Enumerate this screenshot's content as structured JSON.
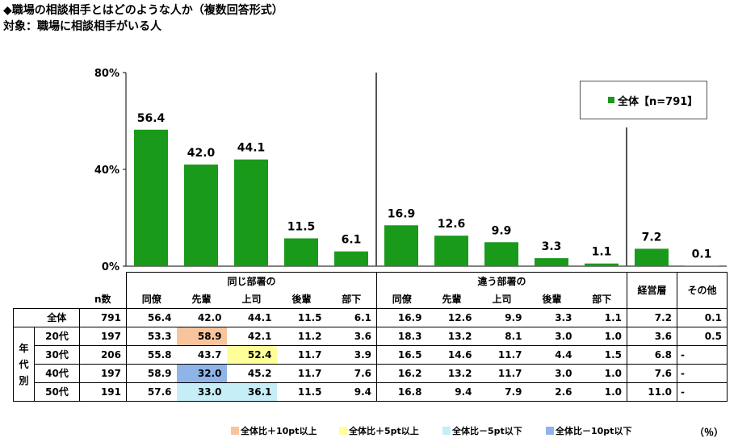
{
  "title_line1": "◆職場の相談相手とはどのような人か（複数回答形式）",
  "title_line2": "対象：職場に相談相手がいる人",
  "legend": {
    "series_label": "全体【n=791】",
    "color": "#1a9a1a"
  },
  "chart_data": {
    "type": "bar",
    "ylim": [
      0,
      80
    ],
    "yticks": [
      "0%",
      "40%",
      "80%"
    ],
    "categories": [
      "同僚",
      "先輩",
      "上司",
      "後輩",
      "部下",
      "同僚",
      "先輩",
      "上司",
      "後輩",
      "部下",
      "経営層",
      "その他"
    ],
    "series": [
      {
        "name": "全体【n=791】",
        "values": [
          56.4,
          42.0,
          44.1,
          11.5,
          6.1,
          16.9,
          12.6,
          9.9,
          3.3,
          1.1,
          7.2,
          0.1
        ]
      }
    ],
    "value_labels": [
      "56.4",
      "42.0",
      "44.1",
      "11.5",
      "6.1",
      "16.9",
      "12.6",
      "9.9",
      "3.3",
      "1.1",
      "7.2",
      "0.1"
    ]
  },
  "table": {
    "group_same": "同じ部署の",
    "group_diff": "違う部署の",
    "col_management": "経営層",
    "col_other": "その他",
    "n_header": "n数",
    "sub_headers": [
      "同僚",
      "先輩",
      "上司",
      "後輩",
      "部下"
    ],
    "age_group_label": [
      "年",
      "代",
      "別"
    ],
    "rows": [
      {
        "label": "全体",
        "n": "791",
        "values": [
          "56.4",
          "42.0",
          "44.1",
          "11.5",
          "6.1",
          "16.9",
          "12.6",
          "9.9",
          "3.3",
          "1.1",
          "7.2",
          "0.1"
        ],
        "highlight": [
          "",
          "",
          "",
          "",
          "",
          "",
          "",
          "",
          "",
          "",
          "",
          ""
        ]
      },
      {
        "label": "20代",
        "n": "197",
        "values": [
          "53.3",
          "58.9",
          "42.1",
          "11.2",
          "3.6",
          "18.3",
          "13.2",
          "8.1",
          "3.0",
          "1.0",
          "3.6",
          "0.5"
        ],
        "highlight": [
          "",
          "plus10",
          "",
          "",
          "",
          "",
          "",
          "",
          "",
          "",
          "",
          ""
        ]
      },
      {
        "label": "30代",
        "n": "206",
        "values": [
          "55.8",
          "43.7",
          "52.4",
          "11.7",
          "3.9",
          "16.5",
          "14.6",
          "11.7",
          "4.4",
          "1.5",
          "6.8",
          "-"
        ],
        "highlight": [
          "",
          "",
          "plus5",
          "",
          "",
          "",
          "",
          "",
          "",
          "",
          "",
          ""
        ]
      },
      {
        "label": "40代",
        "n": "197",
        "values": [
          "58.9",
          "32.0",
          "45.2",
          "11.7",
          "7.6",
          "16.2",
          "13.2",
          "11.7",
          "3.0",
          "1.0",
          "7.6",
          "-"
        ],
        "highlight": [
          "",
          "minus10",
          "",
          "",
          "",
          "",
          "",
          "",
          "",
          "",
          "",
          ""
        ]
      },
      {
        "label": "50代",
        "n": "191",
        "values": [
          "57.6",
          "33.0",
          "36.1",
          "11.5",
          "9.4",
          "16.8",
          "9.4",
          "7.9",
          "2.6",
          "1.0",
          "11.0",
          "-"
        ],
        "highlight": [
          "",
          "minus5",
          "minus5",
          "",
          "",
          "",
          "",
          "",
          "",
          "",
          "",
          ""
        ]
      }
    ]
  },
  "highlight_legend": [
    {
      "key": "plus10",
      "label": "全体比＋10pt以上",
      "color": "#f8c49c"
    },
    {
      "key": "plus5",
      "label": "全体比＋5pt以上",
      "color": "#ffff99"
    },
    {
      "key": "minus5",
      "label": "全体比－5pt以下",
      "color": "#c5eef7"
    },
    {
      "key": "minus10",
      "label": "全体比－10pt以下",
      "color": "#8fb4e8"
    }
  ],
  "unit_label": "（％）"
}
